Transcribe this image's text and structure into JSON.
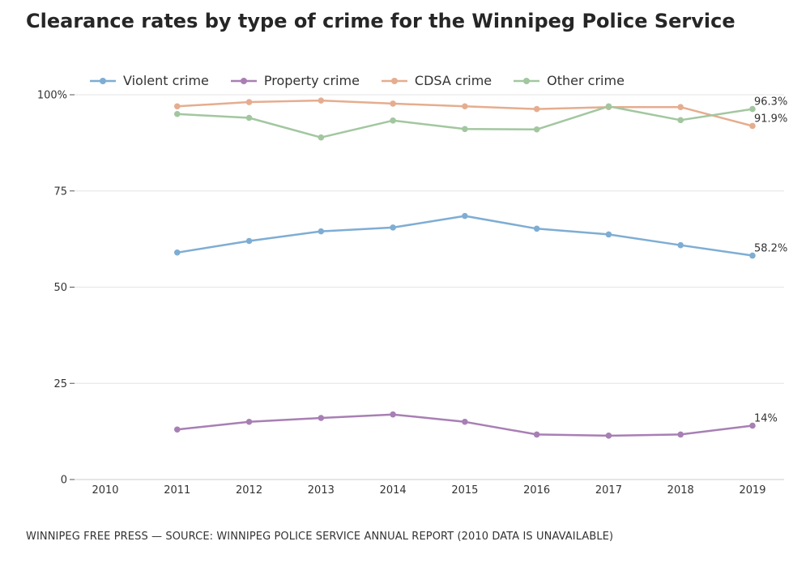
{
  "page": {
    "title": "Clearance rates by type of crime for the Winnipeg Police Service",
    "footer": "WINNIPEG FREE PRESS — SOURCE: WINNIPEG POLICE SERVICE ANNUAL REPORT (2010 DATA IS UNAVAILABLE)"
  },
  "chart_data": {
    "type": "line",
    "title": "Clearance rates by type of crime for the Winnipeg Police Service",
    "xlabel": "",
    "ylabel": "",
    "x": [
      "2010",
      "2011",
      "2012",
      "2013",
      "2014",
      "2015",
      "2016",
      "2017",
      "2018",
      "2019"
    ],
    "ylim": [
      0,
      100
    ],
    "yticks": [
      0,
      25,
      50,
      75,
      100
    ],
    "ytick_labels": [
      "0",
      "25",
      "50",
      "75",
      "100%"
    ],
    "grid": true,
    "legend_position": "top-left",
    "series": [
      {
        "name": "Violent crime",
        "color": "#7eadd4",
        "values": [
          null,
          59.0,
          62.0,
          64.5,
          65.5,
          68.5,
          65.2,
          63.7,
          60.9,
          58.2
        ],
        "end_label": "58.2%"
      },
      {
        "name": "Property crime",
        "color": "#a87fb4",
        "values": [
          null,
          13.0,
          15.0,
          16.0,
          16.9,
          15.0,
          11.7,
          11.4,
          11.7,
          14.0
        ],
        "end_label": "14%"
      },
      {
        "name": "CDSA crime",
        "color": "#e5ad8f",
        "values": [
          null,
          97.0,
          98.1,
          98.5,
          97.7,
          97.0,
          96.3,
          96.8,
          96.8,
          91.9
        ],
        "end_label": "91.9%"
      },
      {
        "name": "Other crime",
        "color": "#a2c7a0",
        "values": [
          null,
          95.0,
          94.0,
          88.9,
          93.3,
          91.1,
          91.0,
          97.0,
          93.4,
          96.3
        ],
        "end_label": "96.3%"
      }
    ]
  }
}
